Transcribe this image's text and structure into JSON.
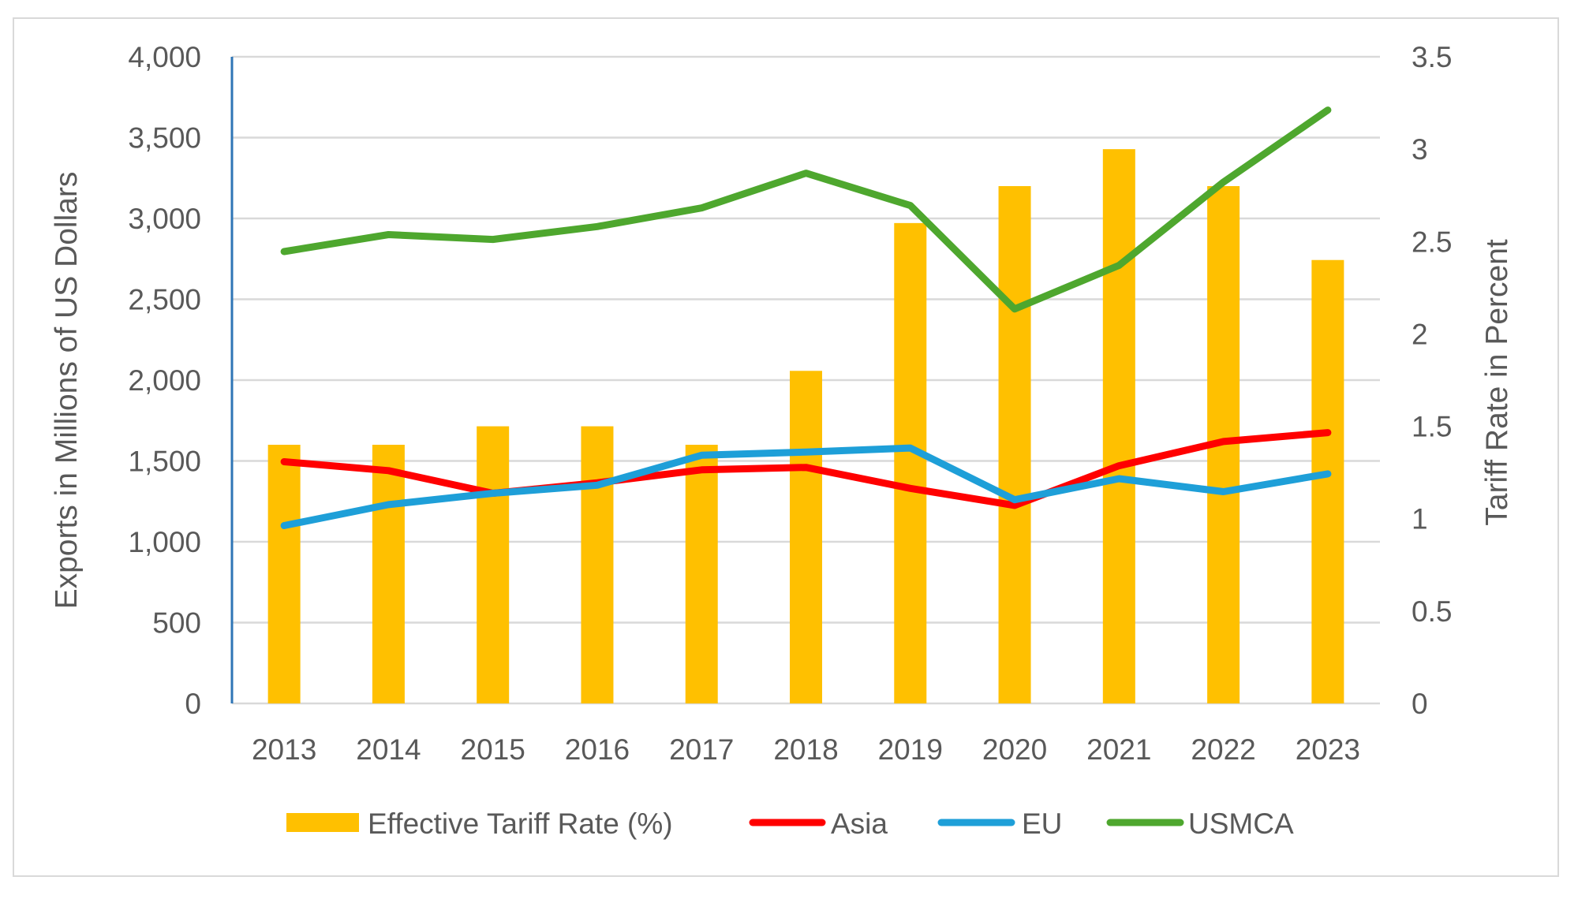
{
  "chart_data": {
    "type": "bar",
    "combo": "bar + line, dual y-axis",
    "title": "",
    "categories": [
      "2013",
      "2014",
      "2015",
      "2016",
      "2017",
      "2018",
      "2019",
      "2020",
      "2021",
      "2022",
      "2023"
    ],
    "xlabel": "",
    "ylabel": "Exports in Millions of US Dollars",
    "ylabel_right": "Tariff Rate in Percent",
    "ylim": [
      0,
      4000
    ],
    "ylim_right": [
      0,
      3.5
    ],
    "yticks": [
      "0",
      "500",
      "1,000",
      "1,500",
      "2,000",
      "2,500",
      "3,000",
      "3,500",
      "4,000"
    ],
    "yticks_right": [
      "0",
      "0.5",
      "1",
      "1.5",
      "2",
      "2.5",
      "3",
      "3.5"
    ],
    "grid": true,
    "legend_position": "bottom",
    "series": [
      {
        "name": "Effective Tariff Rate (%)",
        "type": "bar",
        "axis": "right",
        "color": "#FFC000",
        "values": [
          1.4,
          1.4,
          1.5,
          1.5,
          1.4,
          1.8,
          2.6,
          2.8,
          3.0,
          2.8,
          2.4
        ]
      },
      {
        "name": "Asia",
        "type": "line",
        "axis": "left",
        "color": "#FF0000",
        "values": [
          1495,
          1440,
          1300,
          1365,
          1445,
          1460,
          1330,
          1225,
          1470,
          1620,
          1675
        ]
      },
      {
        "name": "EU",
        "type": "line",
        "axis": "left",
        "color": "#1E9FD8",
        "values": [
          1100,
          1230,
          1300,
          1350,
          1535,
          1555,
          1580,
          1260,
          1390,
          1310,
          1420
        ]
      },
      {
        "name": "USMCA",
        "type": "line",
        "axis": "left",
        "color": "#4EA72E",
        "values": [
          2795,
          2900,
          2870,
          2950,
          3065,
          3280,
          3080,
          2440,
          2710,
          3225,
          3670
        ]
      }
    ]
  },
  "colors": {
    "left_axis_line": "#2E75B6",
    "gridline": "#D9D9D9",
    "text": "#595959"
  }
}
